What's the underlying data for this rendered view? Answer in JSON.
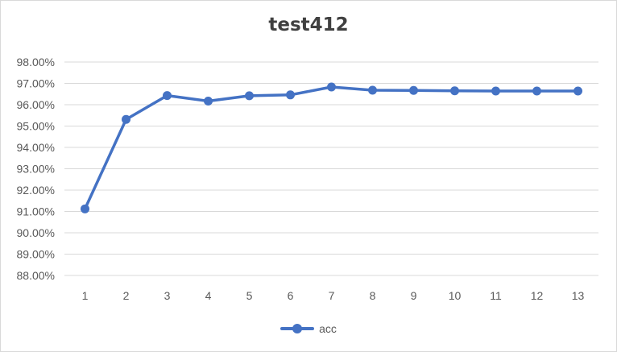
{
  "chart_data": {
    "type": "line",
    "title": "test412",
    "xlabel": "",
    "ylabel": "",
    "categories": [
      "1",
      "2",
      "3",
      "4",
      "5",
      "6",
      "7",
      "8",
      "9",
      "10",
      "11",
      "12",
      "13"
    ],
    "series": [
      {
        "name": "acc",
        "color": "#4472c4",
        "values": [
          0.9112,
          0.9531,
          0.9643,
          0.9617,
          0.9642,
          0.9646,
          0.9683,
          0.9668,
          0.9667,
          0.9665,
          0.9664,
          0.9664,
          0.9664
        ]
      }
    ],
    "ylim": [
      0.88,
      0.98
    ],
    "y_ticks": [
      "88.00%",
      "89.00%",
      "90.00%",
      "91.00%",
      "92.00%",
      "93.00%",
      "94.00%",
      "95.00%",
      "96.00%",
      "97.00%",
      "98.00%"
    ],
    "grid": true,
    "legend_position": "bottom"
  },
  "legend": {
    "label": "acc",
    "color": "#4472c4"
  },
  "colors": {
    "gridline": "#d9d9d9",
    "tick_text": "#595959",
    "title_text": "#404040"
  }
}
